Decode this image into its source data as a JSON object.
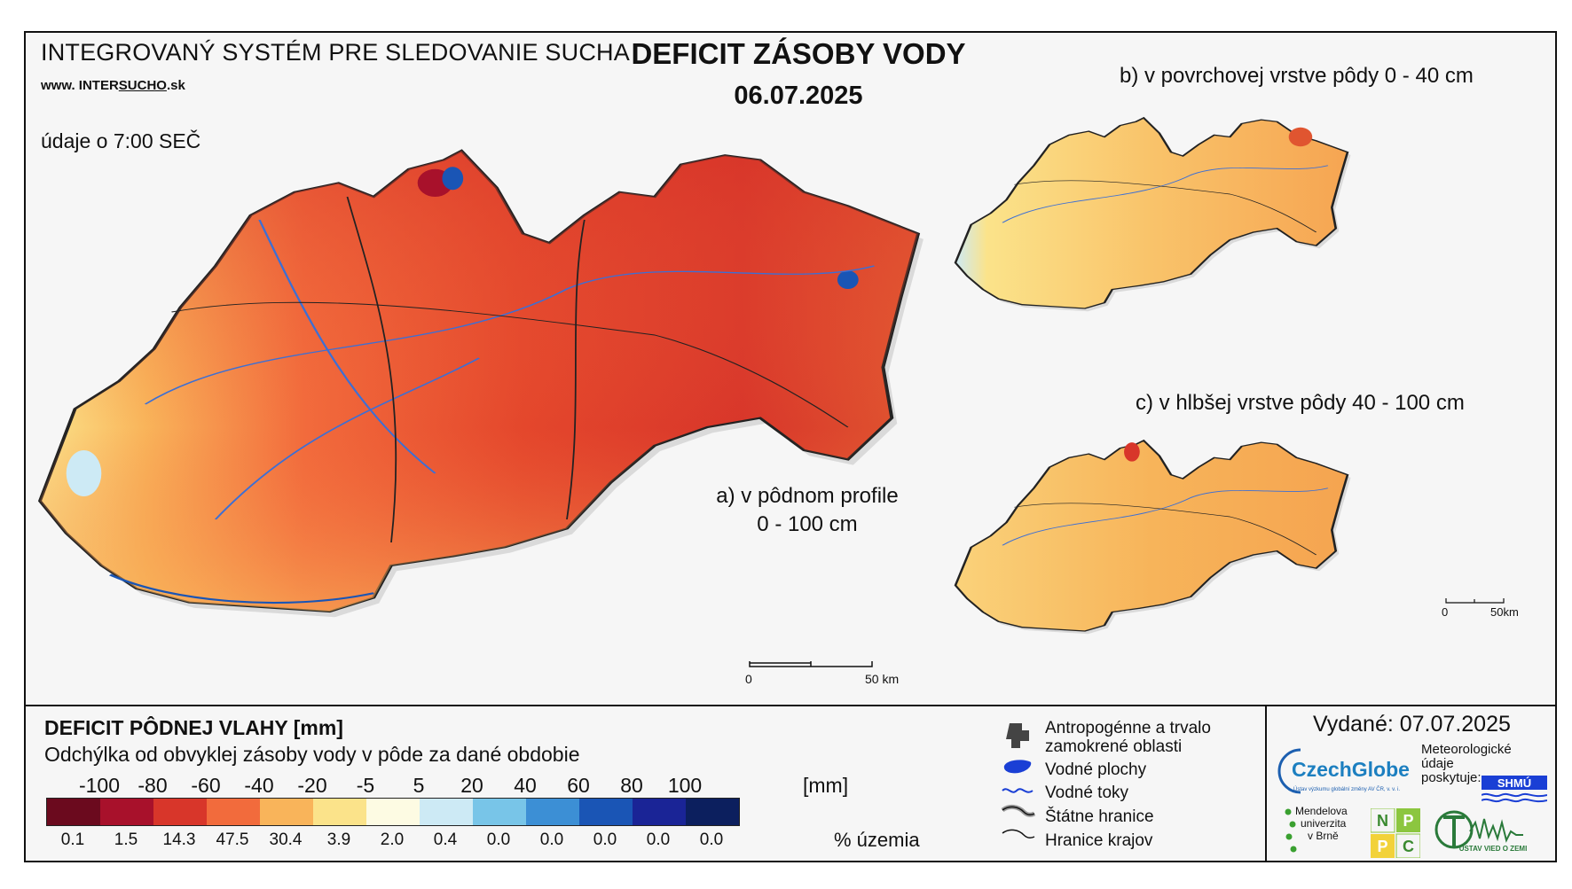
{
  "header": {
    "system_title": "INTEGROVANÝ SYSTÉM PRE SLEDOVANIE SUCHA",
    "website_prefix": "www. INTER",
    "website_highlight": "SUCHO",
    "website_suffix": ".sk",
    "data_time": "údaje o 7:00 SEČ",
    "main_title": "DEFICIT ZÁSOBY VODY",
    "date": "06.07.2025"
  },
  "maps": {
    "a_label_line1": "a) v pôdnom profile",
    "a_label_line2": "0 - 100 cm",
    "b_label": "b) v povrchovej vrstve pôdy 0 - 40 cm",
    "c_label": "c) v hlbšej vrstve pôdy 40 - 100 cm",
    "scale_main_zero": "0",
    "scale_main_end": "50 km",
    "scale_small_zero": "0",
    "scale_small_end": "50km"
  },
  "legend": {
    "title": "DEFICIT PÔDNEJ VLAHY [mm]",
    "subtitle": "Odchýlka od obvyklej zásoby vody v pôde za dané obdobie",
    "ticks": [
      "-100",
      "-80",
      "-60",
      "-40",
      "-20",
      "-5",
      "5",
      "20",
      "40",
      "60",
      "80",
      "100"
    ],
    "unit": "[mm]",
    "colors": [
      "#6b0a1e",
      "#a8112b",
      "#d8362a",
      "#f26b3c",
      "#f9b45a",
      "#fbe38a",
      "#fdfbe3",
      "#cdeaf5",
      "#78c5e8",
      "#3c8fd5",
      "#1a55b5",
      "#1a2496",
      "#0c1f5e"
    ],
    "percentages": [
      "0.1",
      "1.5",
      "14.3",
      "47.5",
      "30.4",
      "3.9",
      "2.0",
      "0.4",
      "0.0",
      "0.0",
      "0.0",
      "0.0",
      "0.0"
    ],
    "percent_unit": "% územia"
  },
  "map_legend": {
    "items": [
      {
        "icon": "urban-area-icon",
        "label_line1": "Antropogénne a trvalo",
        "label_line2": "zamokrené oblasti"
      },
      {
        "icon": "water-body-icon",
        "label_line1": "Vodné plochy",
        "label_line2": ""
      },
      {
        "icon": "river-icon",
        "label_line1": "Vodné toky",
        "label_line2": ""
      },
      {
        "icon": "state-border-icon",
        "label_line1": "Štátne hranice",
        "label_line2": ""
      },
      {
        "icon": "region-border-icon",
        "label_line1": "Hranice krajov",
        "label_line2": ""
      }
    ]
  },
  "footer": {
    "issued": "Vydané: 07.07.2025",
    "czechglobe": "CzechGlobe",
    "czechglobe_sub": "Ústav výzkumu globální změny AV ČR, v. v. i.",
    "meteo_line1": "Meteorologické",
    "meteo_line2": "údaje",
    "meteo_line3": "poskytuje:",
    "shmu": "SHMÚ",
    "mendel_line1": "Mendelova",
    "mendel_line2": "univerzita",
    "mendel_line3": "v Brně",
    "nppc": [
      "N",
      "P",
      "P",
      "C"
    ],
    "uvz": "ÚSTAV VIED O ZEMI"
  }
}
